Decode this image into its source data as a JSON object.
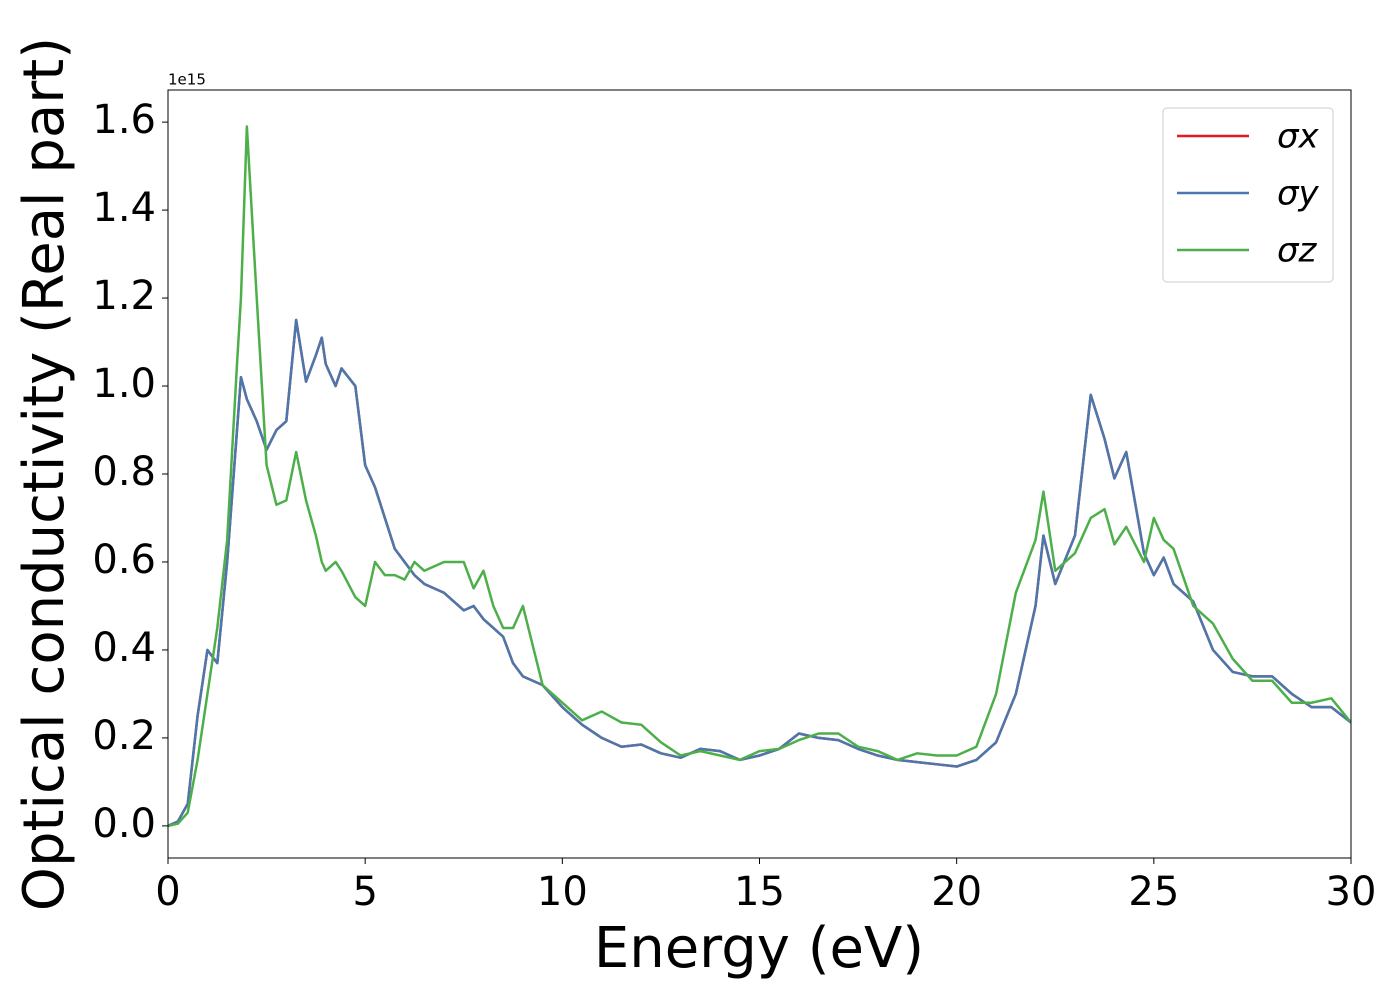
{
  "chart_data": {
    "type": "line",
    "xlabel": "Energy (eV)",
    "ylabel": "Optical conductivity (Real part)",
    "y_offset_label": "1e15",
    "x": [
      0,
      0.25,
      0.5,
      0.75,
      1,
      1.25,
      1.5,
      1.75,
      1.85,
      2,
      2.25,
      2.5,
      2.75,
      3,
      3.25,
      3.5,
      3.75,
      3.9,
      4,
      4.25,
      4.4,
      4.75,
      5,
      5.25,
      5.5,
      5.75,
      6,
      6.25,
      6.5,
      7,
      7.5,
      7.75,
      8,
      8.25,
      8.5,
      8.75,
      9,
      9.5,
      10,
      10.5,
      11,
      11.5,
      12,
      12.5,
      13,
      13.5,
      14,
      14.5,
      15,
      15.5,
      16,
      16.5,
      17,
      17.5,
      18,
      18.5,
      19,
      19.5,
      20,
      20.5,
      21,
      21.5,
      22,
      22.2,
      22.5,
      23,
      23.4,
      23.75,
      24,
      24.3,
      24.75,
      25,
      25.25,
      25.5,
      26,
      26.5,
      27,
      27.5,
      28,
      28.5,
      29,
      29.5,
      30
    ],
    "series": [
      {
        "name": "σx",
        "color": "#e41a1c",
        "values": [
          0,
          0.01,
          0.05,
          0.25,
          0.4,
          0.37,
          0.6,
          0.9,
          1.02,
          0.97,
          0.92,
          0.855,
          0.9,
          0.92,
          1.15,
          1.01,
          1.07,
          1.11,
          1.05,
          1.0,
          1.04,
          1.0,
          0.82,
          0.77,
          0.7,
          0.63,
          0.6,
          0.57,
          0.55,
          0.53,
          0.49,
          0.5,
          0.47,
          0.45,
          0.43,
          0.37,
          0.34,
          0.32,
          0.27,
          0.23,
          0.2,
          0.18,
          0.185,
          0.165,
          0.155,
          0.175,
          0.17,
          0.15,
          0.16,
          0.175,
          0.21,
          0.2,
          0.195,
          0.175,
          0.16,
          0.15,
          0.145,
          0.14,
          0.135,
          0.15,
          0.19,
          0.3,
          0.5,
          0.66,
          0.55,
          0.66,
          0.98,
          0.88,
          0.79,
          0.85,
          0.62,
          0.57,
          0.61,
          0.55,
          0.51,
          0.4,
          0.35,
          0.34,
          0.34,
          0.3,
          0.27,
          0.27,
          0.235
        ]
      },
      {
        "name": "σy",
        "color": "#4a78ad",
        "values": [
          0,
          0.01,
          0.05,
          0.25,
          0.4,
          0.37,
          0.6,
          0.9,
          1.02,
          0.97,
          0.92,
          0.855,
          0.9,
          0.92,
          1.15,
          1.01,
          1.07,
          1.11,
          1.05,
          1.0,
          1.04,
          1.0,
          0.82,
          0.77,
          0.7,
          0.63,
          0.6,
          0.57,
          0.55,
          0.53,
          0.49,
          0.5,
          0.47,
          0.45,
          0.43,
          0.37,
          0.34,
          0.32,
          0.27,
          0.23,
          0.2,
          0.18,
          0.185,
          0.165,
          0.155,
          0.175,
          0.17,
          0.15,
          0.16,
          0.175,
          0.21,
          0.2,
          0.195,
          0.175,
          0.16,
          0.15,
          0.145,
          0.14,
          0.135,
          0.15,
          0.19,
          0.3,
          0.5,
          0.66,
          0.55,
          0.66,
          0.98,
          0.88,
          0.79,
          0.85,
          0.62,
          0.57,
          0.61,
          0.55,
          0.51,
          0.4,
          0.35,
          0.34,
          0.34,
          0.3,
          0.27,
          0.27,
          0.235
        ]
      },
      {
        "name": "σz",
        "color": "#4daf4a",
        "values": [
          0,
          0.005,
          0.03,
          0.15,
          0.3,
          0.45,
          0.65,
          1.05,
          1.2,
          1.59,
          1.2,
          0.82,
          0.73,
          0.74,
          0.85,
          0.74,
          0.66,
          0.6,
          0.58,
          0.6,
          0.58,
          0.52,
          0.5,
          0.6,
          0.57,
          0.57,
          0.56,
          0.6,
          0.58,
          0.6,
          0.6,
          0.54,
          0.58,
          0.5,
          0.45,
          0.45,
          0.5,
          0.32,
          0.28,
          0.24,
          0.26,
          0.235,
          0.23,
          0.19,
          0.16,
          0.17,
          0.16,
          0.15,
          0.17,
          0.175,
          0.195,
          0.21,
          0.21,
          0.18,
          0.17,
          0.15,
          0.165,
          0.16,
          0.16,
          0.18,
          0.3,
          0.53,
          0.65,
          0.76,
          0.58,
          0.62,
          0.7,
          0.72,
          0.64,
          0.68,
          0.6,
          0.7,
          0.65,
          0.63,
          0.5,
          0.46,
          0.38,
          0.33,
          0.33,
          0.28,
          0.28,
          0.29,
          0.235
        ]
      }
    ],
    "xlim": [
      0,
      30
    ],
    "xticks": [
      0,
      5,
      10,
      15,
      20,
      25,
      30
    ],
    "ylim": [
      -0.073,
      1.673
    ],
    "yticks": [
      {
        "value": 0,
        "label": "0.0"
      },
      0.2,
      0.4,
      0.6,
      0.8,
      {
        "value": 1,
        "label": "1.0"
      },
      1.2,
      1.4,
      1.6
    ],
    "grid": false,
    "legend": "upper right"
  }
}
